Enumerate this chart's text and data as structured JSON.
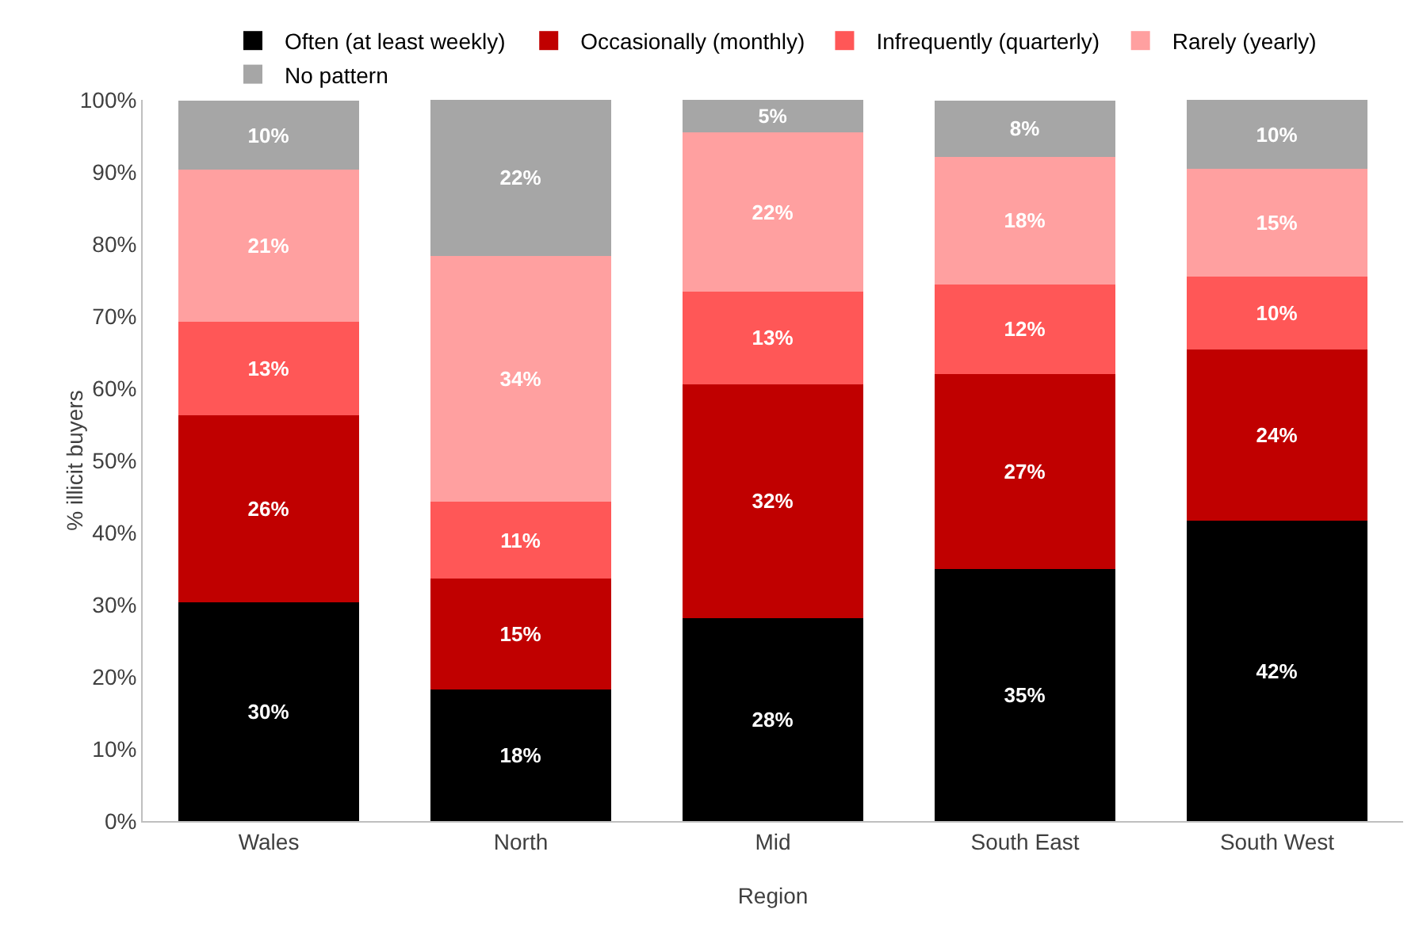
{
  "chart_data": {
    "type": "bar",
    "stacked": true,
    "xlabel": "Region",
    "ylabel": "% illicit buyers",
    "categories": [
      "Wales",
      "North",
      "Mid",
      "South East",
      "South West"
    ],
    "ylim": [
      0,
      100
    ],
    "yticks": [
      {
        "value": 0,
        "label": "0%"
      },
      {
        "value": 10,
        "label": "10%"
      },
      {
        "value": 20,
        "label": "20%"
      },
      {
        "value": 30,
        "label": "30%"
      },
      {
        "value": 40,
        "label": "40%"
      },
      {
        "value": 50,
        "label": "50%"
      },
      {
        "value": 60,
        "label": "60%"
      },
      {
        "value": 70,
        "label": "70%"
      },
      {
        "value": 80,
        "label": "80%"
      },
      {
        "value": 90,
        "label": "90%"
      },
      {
        "value": 100,
        "label": "100%"
      }
    ],
    "grid": false,
    "legend": "top",
    "series": [
      {
        "name": "Often (at least weekly)",
        "color": "#000000",
        "values": [
          30.3,
          18.2,
          28.1,
          34.9,
          41.6
        ],
        "value_labels": [
          "30%",
          "18%",
          "28%",
          "35%",
          "42%"
        ]
      },
      {
        "name": "Occasionally (monthly)",
        "color": "#c00000",
        "values": [
          26.0,
          15.4,
          32.5,
          27.1,
          23.8
        ],
        "value_labels": [
          "26%",
          "15%",
          "32%",
          "27%",
          "24%"
        ]
      },
      {
        "name": "Infrequently (quarterly)",
        "color": "#ff5757",
        "values": [
          12.9,
          10.7,
          12.8,
          12.4,
          10.1
        ],
        "value_labels": [
          "13%",
          "11%",
          "13%",
          "12%",
          "10%"
        ]
      },
      {
        "name": "Rarely (yearly)",
        "color": "#ffa0a0",
        "values": [
          21.1,
          34.1,
          22.1,
          17.7,
          14.9
        ],
        "value_labels": [
          "21%",
          "34%",
          "22%",
          "18%",
          "15%"
        ]
      },
      {
        "name": "No pattern",
        "color": "#a6a6a6",
        "values": [
          9.6,
          21.6,
          4.5,
          7.8,
          9.6
        ],
        "value_labels": [
          "10%",
          "22%",
          "5%",
          "8%",
          "10%"
        ]
      }
    ]
  }
}
